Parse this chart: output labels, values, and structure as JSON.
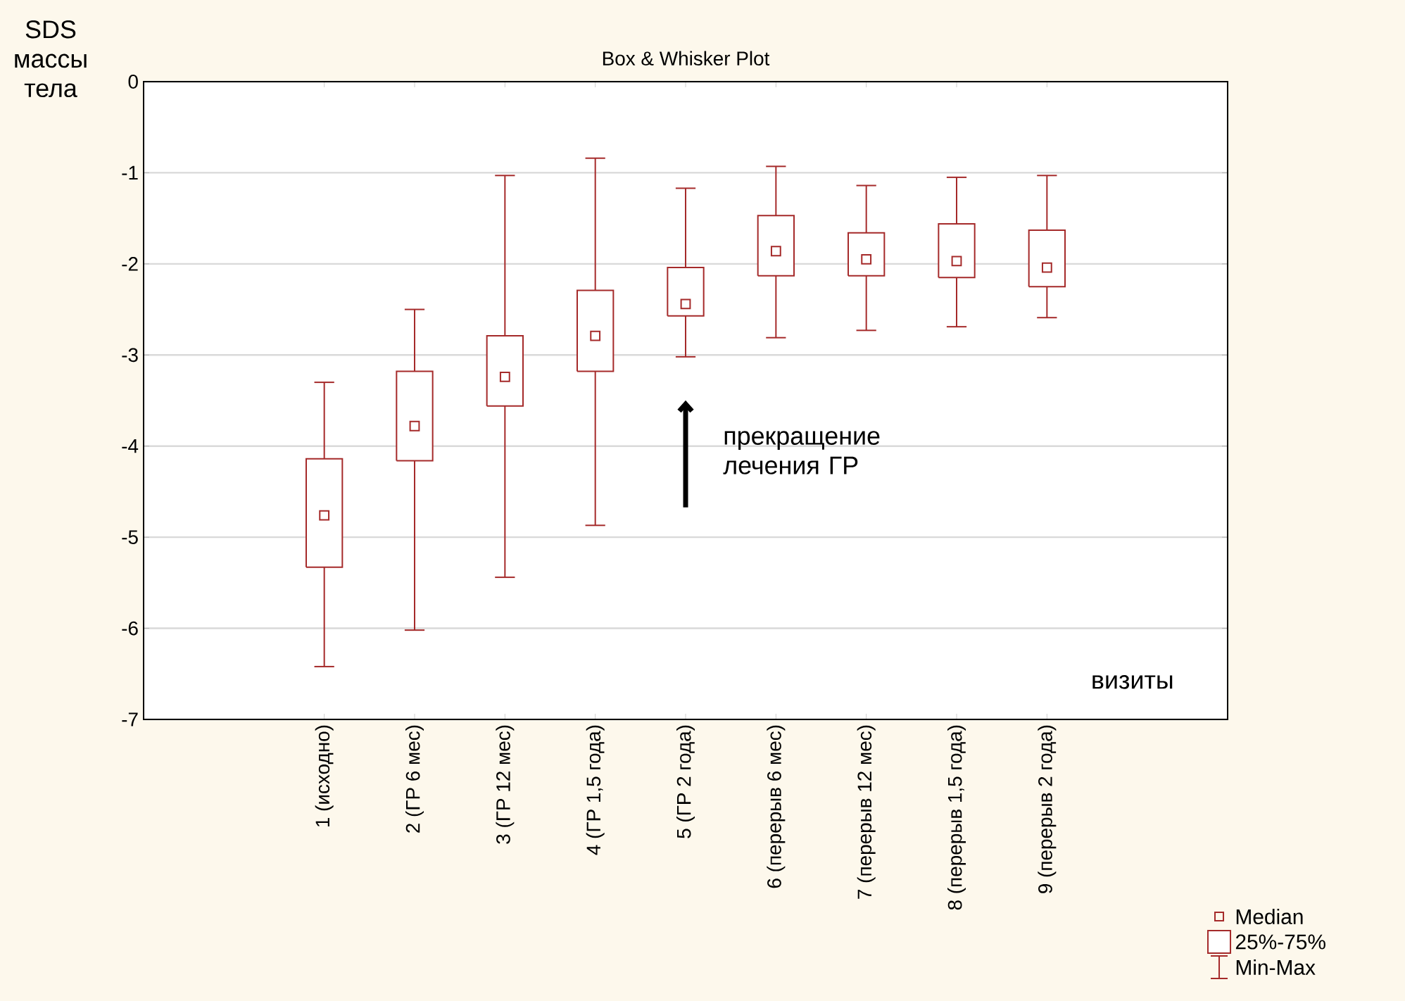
{
  "chart_data": {
    "type": "box",
    "title": "Box & Whisker Plot",
    "xlabel": "визиты",
    "ylabel": "SDS массы тела",
    "categories": [
      "1 (исходно)",
      "2 (ГР 6 мес)",
      "3 (ГР 12 мес)",
      "4 (ГР 1,5 года)",
      "5 (ГР 2 года)",
      "6 (перерыв 6 мес)",
      "7 (перерыв 12 мес)",
      "8 (перерыв 1,5 года)",
      "9 (перерыв 2 года)"
    ],
    "boxes": [
      {
        "low": -6.42,
        "q1": -5.33,
        "median": -4.76,
        "q3": -4.14,
        "high": -3.3
      },
      {
        "low": -6.02,
        "q1": -4.16,
        "median": -3.78,
        "q3": -3.18,
        "high": -2.5
      },
      {
        "low": -5.44,
        "q1": -3.56,
        "median": -3.24,
        "q3": -2.79,
        "high": -1.03
      },
      {
        "low": -4.87,
        "q1": -3.18,
        "median": -2.79,
        "q3": -2.29,
        "high": -0.84
      },
      {
        "low": -3.02,
        "q1": -2.57,
        "median": -2.44,
        "q3": -2.04,
        "high": -1.17
      },
      {
        "low": -2.81,
        "q1": -2.13,
        "median": -1.86,
        "q3": -1.47,
        "high": -0.93
      },
      {
        "low": -2.73,
        "q1": -2.13,
        "median": -1.95,
        "q3": -1.66,
        "high": -1.14
      },
      {
        "low": -2.69,
        "q1": -2.15,
        "median": -1.97,
        "q3": -1.56,
        "high": -1.05
      },
      {
        "low": -2.59,
        "q1": -2.25,
        "median": -2.04,
        "q3": -1.63,
        "high": -1.03
      }
    ],
    "color": "#a52a2a",
    "ylim": [
      -7,
      0
    ],
    "yticks": [
      -7,
      -6,
      -5,
      -4,
      -3,
      -2,
      -1,
      0
    ],
    "grid": "y",
    "annotations": [
      "прекращение лечения ГР",
      "Median",
      "25%-75%",
      "Min-Max"
    ]
  }
}
